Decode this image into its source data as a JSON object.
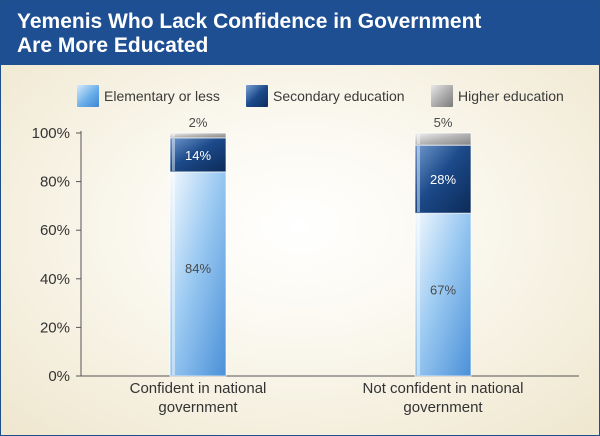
{
  "header": {
    "title_line1": "Yemenis Who Lack Confidence in Government",
    "title_line2": "Are More Educated"
  },
  "colors": {
    "header_bg": "#1e4f93",
    "elementary": "#6aaee9",
    "secondary": "#1c4a8a",
    "higher": "#a9a9a9"
  },
  "chart_data": {
    "type": "bar",
    "stacked": true,
    "title": "Yemenis Who Lack Confidence in Government Are More Educated",
    "categories": [
      "Confident in national government",
      "Not confident in national government"
    ],
    "category_lines": [
      [
        "Confident in national",
        "government"
      ],
      [
        "Not confident in national",
        "government"
      ]
    ],
    "series": [
      {
        "name": "Elementary or less",
        "values": [
          84,
          67
        ],
        "labels": [
          "84%",
          "67%"
        ],
        "color": "#6aaee9"
      },
      {
        "name": "Secondary education",
        "values": [
          14,
          28
        ],
        "labels": [
          "14%",
          "28%"
        ],
        "color": "#1c4a8a"
      },
      {
        "name": "Higher education",
        "values": [
          2,
          5
        ],
        "labels": [
          "2%",
          "5%"
        ],
        "color": "#a9a9a9"
      }
    ],
    "ylim": [
      0,
      100
    ],
    "yticks": [
      0,
      20,
      40,
      60,
      80,
      100
    ],
    "ytick_labels": [
      "0%",
      "20%",
      "40%",
      "60%",
      "80%",
      "100%"
    ],
    "legend": "top",
    "grid": false
  }
}
